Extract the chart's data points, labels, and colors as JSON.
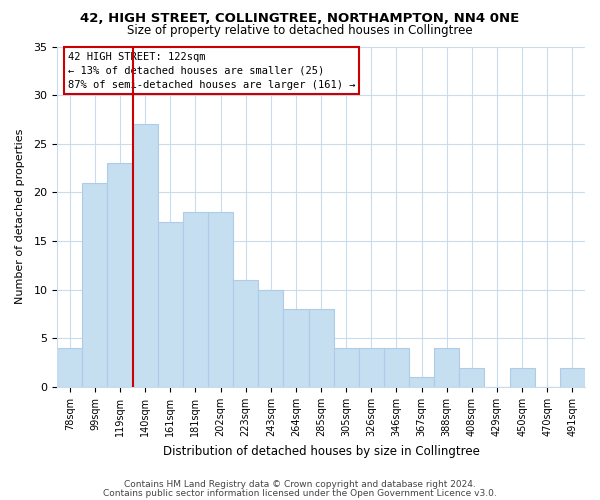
{
  "title": "42, HIGH STREET, COLLINGTREE, NORTHAMPTON, NN4 0NE",
  "subtitle": "Size of property relative to detached houses in Collingtree",
  "xlabel": "Distribution of detached houses by size in Collingtree",
  "ylabel": "Number of detached properties",
  "footer1": "Contains HM Land Registry data © Crown copyright and database right 2024.",
  "footer2": "Contains public sector information licensed under the Open Government Licence v3.0.",
  "bin_labels": [
    "78sqm",
    "99sqm",
    "119sqm",
    "140sqm",
    "161sqm",
    "181sqm",
    "202sqm",
    "223sqm",
    "243sqm",
    "264sqm",
    "285sqm",
    "305sqm",
    "326sqm",
    "346sqm",
    "367sqm",
    "388sqm",
    "408sqm",
    "429sqm",
    "450sqm",
    "470sqm",
    "491sqm"
  ],
  "bar_values": [
    4,
    21,
    23,
    27,
    17,
    18,
    18,
    11,
    10,
    8,
    8,
    4,
    4,
    4,
    1,
    4,
    2,
    0,
    2,
    0,
    2
  ],
  "bar_color": "#c5dff0",
  "bar_edge_color": "#aecce8",
  "ylim": [
    0,
    35
  ],
  "yticks": [
    0,
    5,
    10,
    15,
    20,
    25,
    30,
    35
  ],
  "background_color": "#ffffff",
  "grid_color": "#c8dced",
  "ref_line_color": "#cc0000",
  "annotation_box_color": "#ffffff",
  "annotation_box_edge": "#cc0000",
  "annotation_title": "42 HIGH STREET: 122sqm",
  "annotation_line1": "← 13% of detached houses are smaller (25)",
  "annotation_line2": "87% of semi-detached houses are larger (161) →",
  "ref_bar_index": 2
}
